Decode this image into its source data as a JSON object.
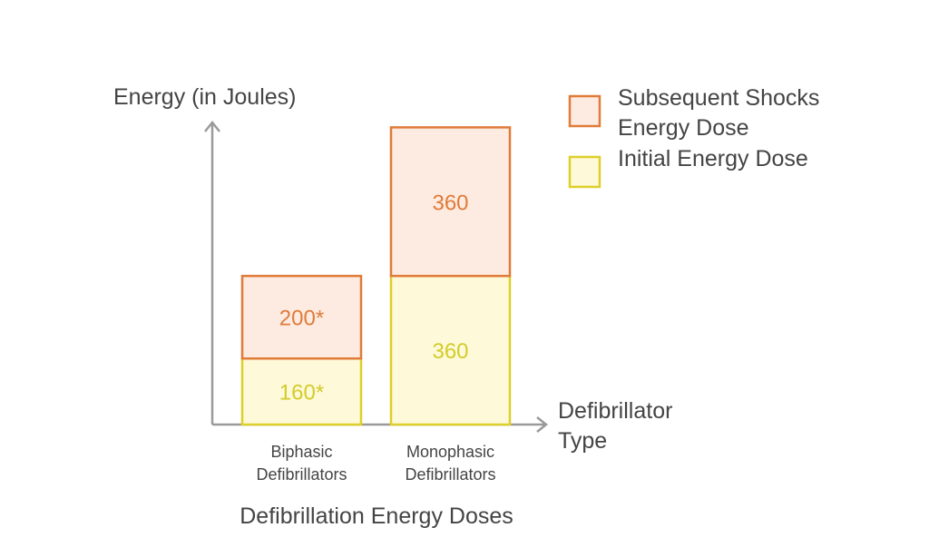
{
  "chart_data": {
    "type": "bar",
    "stacked": true,
    "title": "Defibrillation Energy Doses",
    "ylabel": "Energy (in Joules)",
    "xlabel": "Defibrillator Type",
    "categories": [
      "Biphasic Defibrillators",
      "Monophasic Defibrillators"
    ],
    "category_lines": [
      [
        "Biphasic",
        "Defibrillators"
      ],
      [
        "Monophasic",
        "Defibrillators"
      ]
    ],
    "series": [
      {
        "name": "Initial Energy Dose",
        "values": [
          160,
          360
        ],
        "labels": [
          "160*",
          "360"
        ],
        "stroke": "#DDD02A",
        "fill": "#FEF9D9",
        "text_color": "#D2CC2A"
      },
      {
        "name": "Subsequent Shocks Energy Dose",
        "values": [
          200,
          360
        ],
        "labels": [
          "200*",
          "360"
        ],
        "stroke": "#E07B39",
        "fill": "#FDEBE1",
        "text_color": "#E07B39"
      }
    ],
    "legend": {
      "placement": "top-right",
      "entries": [
        {
          "lines": [
            "Subsequent Shocks",
            "Energy Dose"
          ],
          "series": 1
        },
        {
          "lines": [
            "Initial Energy Dose"
          ],
          "series": 0
        }
      ]
    },
    "ylim": [
      0,
      730
    ],
    "grid": false,
    "axis_color": "#9A9A9A",
    "text_color": "#444444"
  }
}
